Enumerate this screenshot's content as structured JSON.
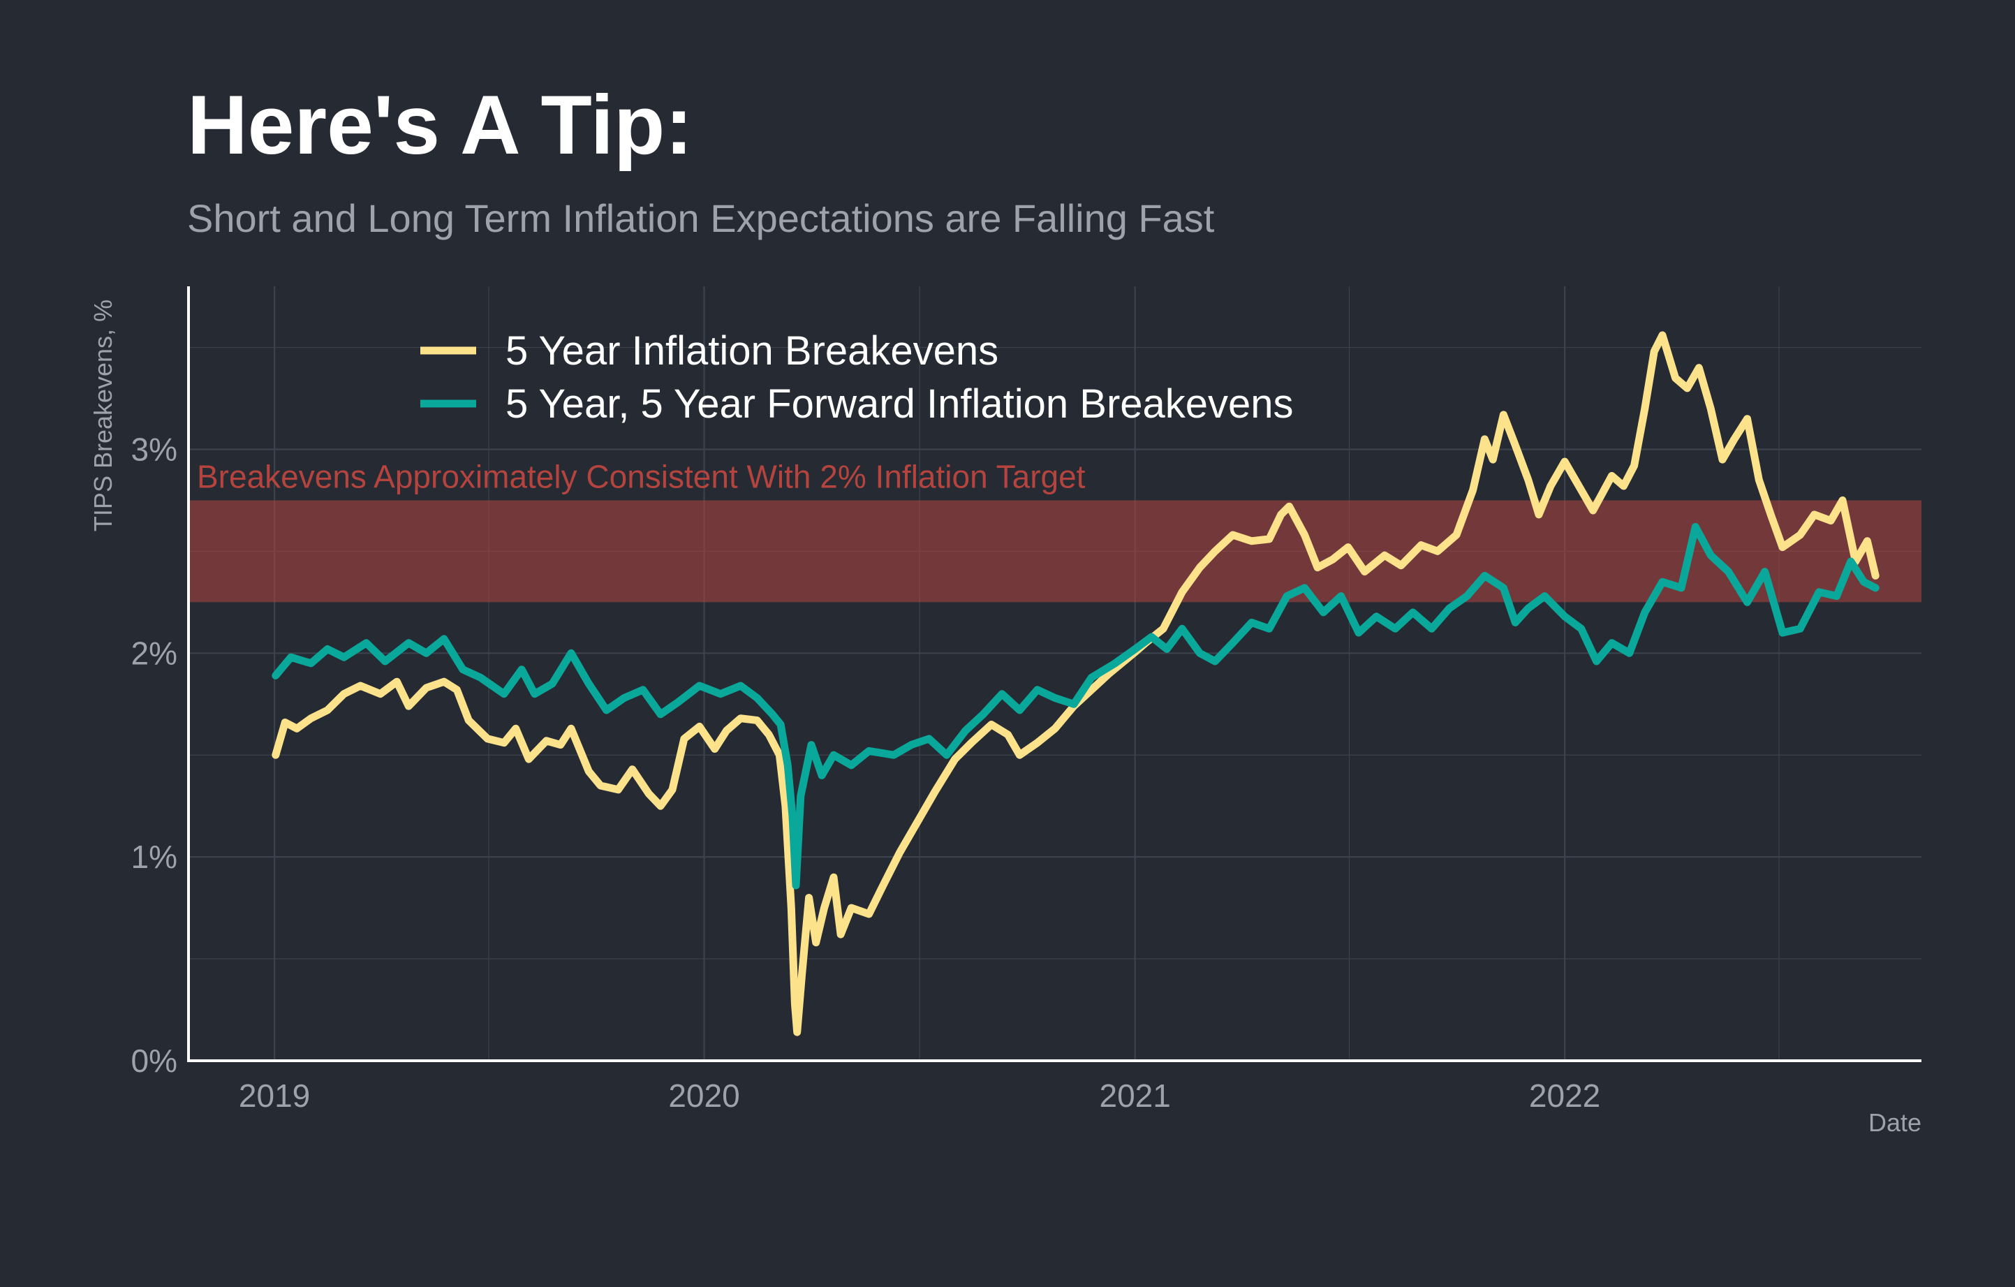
{
  "chart_data": {
    "type": "line",
    "title": "Here's A Tip:",
    "subtitle": "Short and Long Term Inflation Expectations are Falling Fast",
    "xlabel": "Date",
    "ylabel": "TIPS Breakevens, %",
    "xlim": [
      "2018-10-20",
      "2022-10-31"
    ],
    "ylim": [
      0,
      3.8
    ],
    "grid": true,
    "legend_position": "top-left",
    "x_ticks": [
      {
        "label": "2019",
        "date": "2019-01-01"
      },
      {
        "label": "2020",
        "date": "2020-01-01"
      },
      {
        "label": "2021",
        "date": "2021-01-01"
      },
      {
        "label": "2022",
        "date": "2022-01-01"
      }
    ],
    "y_ticks": [
      {
        "label": "0%",
        "value": 0
      },
      {
        "label": "1%",
        "value": 1
      },
      {
        "label": "2%",
        "value": 2
      },
      {
        "label": "3%",
        "value": 3
      }
    ],
    "band": {
      "ymin": 2.25,
      "ymax": 2.75,
      "label": "Breakevens Approximately Consistent With 2% Inflation Target",
      "color": "#b5443f"
    },
    "series": [
      {
        "name": "5 Year Inflation Breakevens",
        "color": "#fde28c",
        "points": [
          [
            "2019-01-02",
            1.5
          ],
          [
            "2019-01-10",
            1.66
          ],
          [
            "2019-01-20",
            1.63
          ],
          [
            "2019-02-01",
            1.68
          ],
          [
            "2019-02-15",
            1.72
          ],
          [
            "2019-03-01",
            1.8
          ],
          [
            "2019-03-15",
            1.84
          ],
          [
            "2019-04-01",
            1.8
          ],
          [
            "2019-04-15",
            1.86
          ],
          [
            "2019-04-25",
            1.74
          ],
          [
            "2019-05-10",
            1.83
          ],
          [
            "2019-05-25",
            1.86
          ],
          [
            "2019-06-05",
            1.82
          ],
          [
            "2019-06-15",
            1.67
          ],
          [
            "2019-07-01",
            1.58
          ],
          [
            "2019-07-15",
            1.56
          ],
          [
            "2019-07-25",
            1.63
          ],
          [
            "2019-08-05",
            1.48
          ],
          [
            "2019-08-20",
            1.57
          ],
          [
            "2019-09-01",
            1.55
          ],
          [
            "2019-09-10",
            1.63
          ],
          [
            "2019-09-25",
            1.42
          ],
          [
            "2019-10-05",
            1.35
          ],
          [
            "2019-10-20",
            1.33
          ],
          [
            "2019-11-01",
            1.43
          ],
          [
            "2019-11-15",
            1.31
          ],
          [
            "2019-11-25",
            1.25
          ],
          [
            "2019-12-05",
            1.33
          ],
          [
            "2019-12-15",
            1.58
          ],
          [
            "2019-12-28",
            1.64
          ],
          [
            "2020-01-10",
            1.53
          ],
          [
            "2020-01-20",
            1.62
          ],
          [
            "2020-02-01",
            1.68
          ],
          [
            "2020-02-15",
            1.67
          ],
          [
            "2020-02-25",
            1.6
          ],
          [
            "2020-03-05",
            1.5
          ],
          [
            "2020-03-10",
            1.25
          ],
          [
            "2020-03-15",
            0.75
          ],
          [
            "2020-03-18",
            0.28
          ],
          [
            "2020-03-20",
            0.14
          ],
          [
            "2020-03-24",
            0.42
          ],
          [
            "2020-03-30",
            0.8
          ],
          [
            "2020-04-05",
            0.58
          ],
          [
            "2020-04-12",
            0.75
          ],
          [
            "2020-04-20",
            0.9
          ],
          [
            "2020-04-26",
            0.62
          ],
          [
            "2020-05-05",
            0.75
          ],
          [
            "2020-05-20",
            0.72
          ],
          [
            "2020-06-01",
            0.86
          ],
          [
            "2020-06-15",
            1.02
          ],
          [
            "2020-07-01",
            1.18
          ],
          [
            "2020-07-15",
            1.32
          ],
          [
            "2020-08-01",
            1.48
          ],
          [
            "2020-08-15",
            1.56
          ],
          [
            "2020-09-01",
            1.65
          ],
          [
            "2020-09-15",
            1.6
          ],
          [
            "2020-09-25",
            1.5
          ],
          [
            "2020-10-10",
            1.56
          ],
          [
            "2020-10-25",
            1.63
          ],
          [
            "2020-11-10",
            1.74
          ],
          [
            "2020-11-25",
            1.82
          ],
          [
            "2020-12-10",
            1.9
          ],
          [
            "2020-12-31",
            2.0
          ],
          [
            "2021-01-10",
            2.05
          ],
          [
            "2021-01-25",
            2.12
          ],
          [
            "2021-02-10",
            2.3
          ],
          [
            "2021-02-25",
            2.42
          ],
          [
            "2021-03-10",
            2.5
          ],
          [
            "2021-03-25",
            2.58
          ],
          [
            "2021-04-10",
            2.55
          ],
          [
            "2021-04-25",
            2.56
          ],
          [
            "2021-05-05",
            2.68
          ],
          [
            "2021-05-12",
            2.72
          ],
          [
            "2021-05-25",
            2.58
          ],
          [
            "2021-06-05",
            2.42
          ],
          [
            "2021-06-18",
            2.46
          ],
          [
            "2021-07-01",
            2.52
          ],
          [
            "2021-07-15",
            2.4
          ],
          [
            "2021-08-01",
            2.48
          ],
          [
            "2021-08-15",
            2.43
          ],
          [
            "2021-09-01",
            2.53
          ],
          [
            "2021-09-15",
            2.5
          ],
          [
            "2021-10-01",
            2.58
          ],
          [
            "2021-10-15",
            2.8
          ],
          [
            "2021-10-25",
            3.05
          ],
          [
            "2021-11-01",
            2.95
          ],
          [
            "2021-11-10",
            3.17
          ],
          [
            "2021-11-20",
            3.02
          ],
          [
            "2021-12-01",
            2.85
          ],
          [
            "2021-12-10",
            2.68
          ],
          [
            "2021-12-20",
            2.82
          ],
          [
            "2022-01-01",
            2.94
          ],
          [
            "2022-01-15",
            2.8
          ],
          [
            "2022-01-25",
            2.7
          ],
          [
            "2022-02-10",
            2.87
          ],
          [
            "2022-02-20",
            2.82
          ],
          [
            "2022-03-01",
            2.92
          ],
          [
            "2022-03-10",
            3.2
          ],
          [
            "2022-03-18",
            3.48
          ],
          [
            "2022-03-25",
            3.56
          ],
          [
            "2022-04-05",
            3.35
          ],
          [
            "2022-04-15",
            3.3
          ],
          [
            "2022-04-25",
            3.4
          ],
          [
            "2022-05-05",
            3.2
          ],
          [
            "2022-05-15",
            2.95
          ],
          [
            "2022-05-25",
            3.05
          ],
          [
            "2022-06-05",
            3.15
          ],
          [
            "2022-06-15",
            2.85
          ],
          [
            "2022-06-25",
            2.68
          ],
          [
            "2022-07-05",
            2.52
          ],
          [
            "2022-07-20",
            2.58
          ],
          [
            "2022-08-01",
            2.68
          ],
          [
            "2022-08-15",
            2.65
          ],
          [
            "2022-08-25",
            2.75
          ],
          [
            "2022-09-05",
            2.45
          ],
          [
            "2022-09-15",
            2.55
          ],
          [
            "2022-09-22",
            2.38
          ]
        ]
      },
      {
        "name": "5 Year, 5 Year Forward Inflation Breakevens",
        "color": "#0aa89a",
        "points": [
          [
            "2019-01-02",
            1.89
          ],
          [
            "2019-01-15",
            1.98
          ],
          [
            "2019-02-01",
            1.95
          ],
          [
            "2019-02-15",
            2.02
          ],
          [
            "2019-03-01",
            1.98
          ],
          [
            "2019-03-20",
            2.05
          ],
          [
            "2019-04-05",
            1.96
          ],
          [
            "2019-04-25",
            2.05
          ],
          [
            "2019-05-10",
            2.0
          ],
          [
            "2019-05-25",
            2.07
          ],
          [
            "2019-06-10",
            1.92
          ],
          [
            "2019-06-25",
            1.88
          ],
          [
            "2019-07-15",
            1.8
          ],
          [
            "2019-07-30",
            1.92
          ],
          [
            "2019-08-10",
            1.8
          ],
          [
            "2019-08-25",
            1.85
          ],
          [
            "2019-09-10",
            2.0
          ],
          [
            "2019-09-25",
            1.85
          ],
          [
            "2019-10-10",
            1.72
          ],
          [
            "2019-10-25",
            1.78
          ],
          [
            "2019-11-10",
            1.82
          ],
          [
            "2019-11-25",
            1.7
          ],
          [
            "2019-12-10",
            1.76
          ],
          [
            "2019-12-28",
            1.84
          ],
          [
            "2020-01-15",
            1.8
          ],
          [
            "2020-02-01",
            1.84
          ],
          [
            "2020-02-15",
            1.78
          ],
          [
            "2020-02-28",
            1.7
          ],
          [
            "2020-03-06",
            1.65
          ],
          [
            "2020-03-12",
            1.45
          ],
          [
            "2020-03-16",
            1.2
          ],
          [
            "2020-03-19",
            0.86
          ],
          [
            "2020-03-23",
            1.3
          ],
          [
            "2020-04-01",
            1.55
          ],
          [
            "2020-04-10",
            1.4
          ],
          [
            "2020-04-20",
            1.5
          ],
          [
            "2020-05-05",
            1.45
          ],
          [
            "2020-05-20",
            1.52
          ],
          [
            "2020-06-10",
            1.5
          ],
          [
            "2020-06-25",
            1.55
          ],
          [
            "2020-07-10",
            1.58
          ],
          [
            "2020-07-25",
            1.5
          ],
          [
            "2020-08-10",
            1.62
          ],
          [
            "2020-08-25",
            1.7
          ],
          [
            "2020-09-10",
            1.8
          ],
          [
            "2020-09-25",
            1.72
          ],
          [
            "2020-10-10",
            1.82
          ],
          [
            "2020-10-25",
            1.78
          ],
          [
            "2020-11-10",
            1.75
          ],
          [
            "2020-11-25",
            1.88
          ],
          [
            "2020-12-15",
            1.95
          ],
          [
            "2021-01-01",
            2.02
          ],
          [
            "2021-01-15",
            2.08
          ],
          [
            "2021-01-28",
            2.02
          ],
          [
            "2021-02-10",
            2.12
          ],
          [
            "2021-02-25",
            2.0
          ],
          [
            "2021-03-10",
            1.96
          ],
          [
            "2021-03-25",
            2.05
          ],
          [
            "2021-04-10",
            2.15
          ],
          [
            "2021-04-25",
            2.12
          ],
          [
            "2021-05-10",
            2.28
          ],
          [
            "2021-05-25",
            2.32
          ],
          [
            "2021-06-10",
            2.2
          ],
          [
            "2021-06-25",
            2.28
          ],
          [
            "2021-07-10",
            2.1
          ],
          [
            "2021-07-25",
            2.18
          ],
          [
            "2021-08-10",
            2.12
          ],
          [
            "2021-08-25",
            2.2
          ],
          [
            "2021-09-10",
            2.12
          ],
          [
            "2021-09-25",
            2.22
          ],
          [
            "2021-10-10",
            2.28
          ],
          [
            "2021-10-25",
            2.38
          ],
          [
            "2021-11-10",
            2.32
          ],
          [
            "2021-11-20",
            2.15
          ],
          [
            "2021-12-01",
            2.22
          ],
          [
            "2021-12-15",
            2.28
          ],
          [
            "2022-01-01",
            2.18
          ],
          [
            "2022-01-15",
            2.12
          ],
          [
            "2022-01-28",
            1.96
          ],
          [
            "2022-02-10",
            2.05
          ],
          [
            "2022-02-25",
            2.0
          ],
          [
            "2022-03-10",
            2.2
          ],
          [
            "2022-03-25",
            2.35
          ],
          [
            "2022-04-10",
            2.32
          ],
          [
            "2022-04-22",
            2.62
          ],
          [
            "2022-05-05",
            2.48
          ],
          [
            "2022-05-20",
            2.4
          ],
          [
            "2022-06-05",
            2.25
          ],
          [
            "2022-06-20",
            2.4
          ],
          [
            "2022-07-05",
            2.1
          ],
          [
            "2022-07-20",
            2.12
          ],
          [
            "2022-08-05",
            2.3
          ],
          [
            "2022-08-20",
            2.28
          ],
          [
            "2022-09-01",
            2.45
          ],
          [
            "2022-09-12",
            2.35
          ],
          [
            "2022-09-22",
            2.32
          ]
        ]
      }
    ]
  }
}
